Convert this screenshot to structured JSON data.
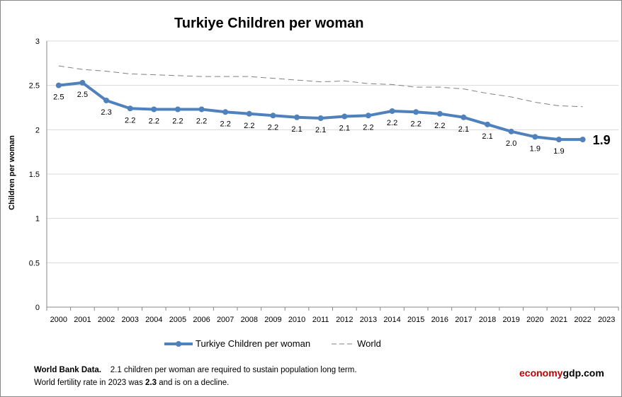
{
  "chart_data": {
    "type": "line",
    "title": "Turkiye Children per woman",
    "ylabel": "Children per woman",
    "xlabel": "",
    "ylim": [
      0,
      3
    ],
    "yticks": [
      "0",
      "0.5",
      "1",
      "1.5",
      "2",
      "2.5",
      "3"
    ],
    "grid": "horizontal",
    "legend_position": "bottom",
    "categories": [
      "2000",
      "2001",
      "2002",
      "2003",
      "2004",
      "2005",
      "2006",
      "2007",
      "2008",
      "2009",
      "2010",
      "2011",
      "2012",
      "2013",
      "2014",
      "2015",
      "2016",
      "2017",
      "2018",
      "2019",
      "2020",
      "2021",
      "2022",
      "2023"
    ],
    "series": [
      {
        "name": "Turkiye Children per woman",
        "color": "#4f81bd",
        "style": "solid-markers",
        "values": [
          2.5,
          2.53,
          2.33,
          2.24,
          2.23,
          2.23,
          2.23,
          2.2,
          2.18,
          2.16,
          2.14,
          2.13,
          2.15,
          2.16,
          2.21,
          2.2,
          2.18,
          2.14,
          2.06,
          1.98,
          1.92,
          1.89,
          1.89,
          null
        ],
        "labels": [
          "2.5",
          "2.5",
          "2.3",
          "2.2",
          "2.2",
          "2.2",
          "2.2",
          "2.2",
          "2.2",
          "2.2",
          "2.1",
          "2.1",
          "2.1",
          "2.2",
          "2.2",
          "2.2",
          "2.2",
          "2.1",
          "2.1",
          "2.0",
          "1.9",
          "1.9",
          "1.9",
          ""
        ]
      },
      {
        "name": "World",
        "color": "#808080",
        "style": "dashed",
        "values": [
          2.72,
          2.68,
          2.66,
          2.63,
          2.62,
          2.61,
          2.6,
          2.6,
          2.6,
          2.58,
          2.56,
          2.54,
          2.55,
          2.52,
          2.51,
          2.48,
          2.48,
          2.46,
          2.41,
          2.37,
          2.31,
          2.27,
          2.26,
          null
        ]
      }
    ]
  },
  "footer": {
    "source_bold": "World Bank Data.",
    "line1": "2.1 children per woman  are required to sustain population long term.",
    "line2_a": "World fertility rate in 2023 was ",
    "line2_b": "2.3",
    "line2_c": " and is on a decline."
  },
  "brand": {
    "part1": "economy",
    "part2": "gdp.com",
    "color1": "#c00000",
    "color2": "#000000"
  }
}
